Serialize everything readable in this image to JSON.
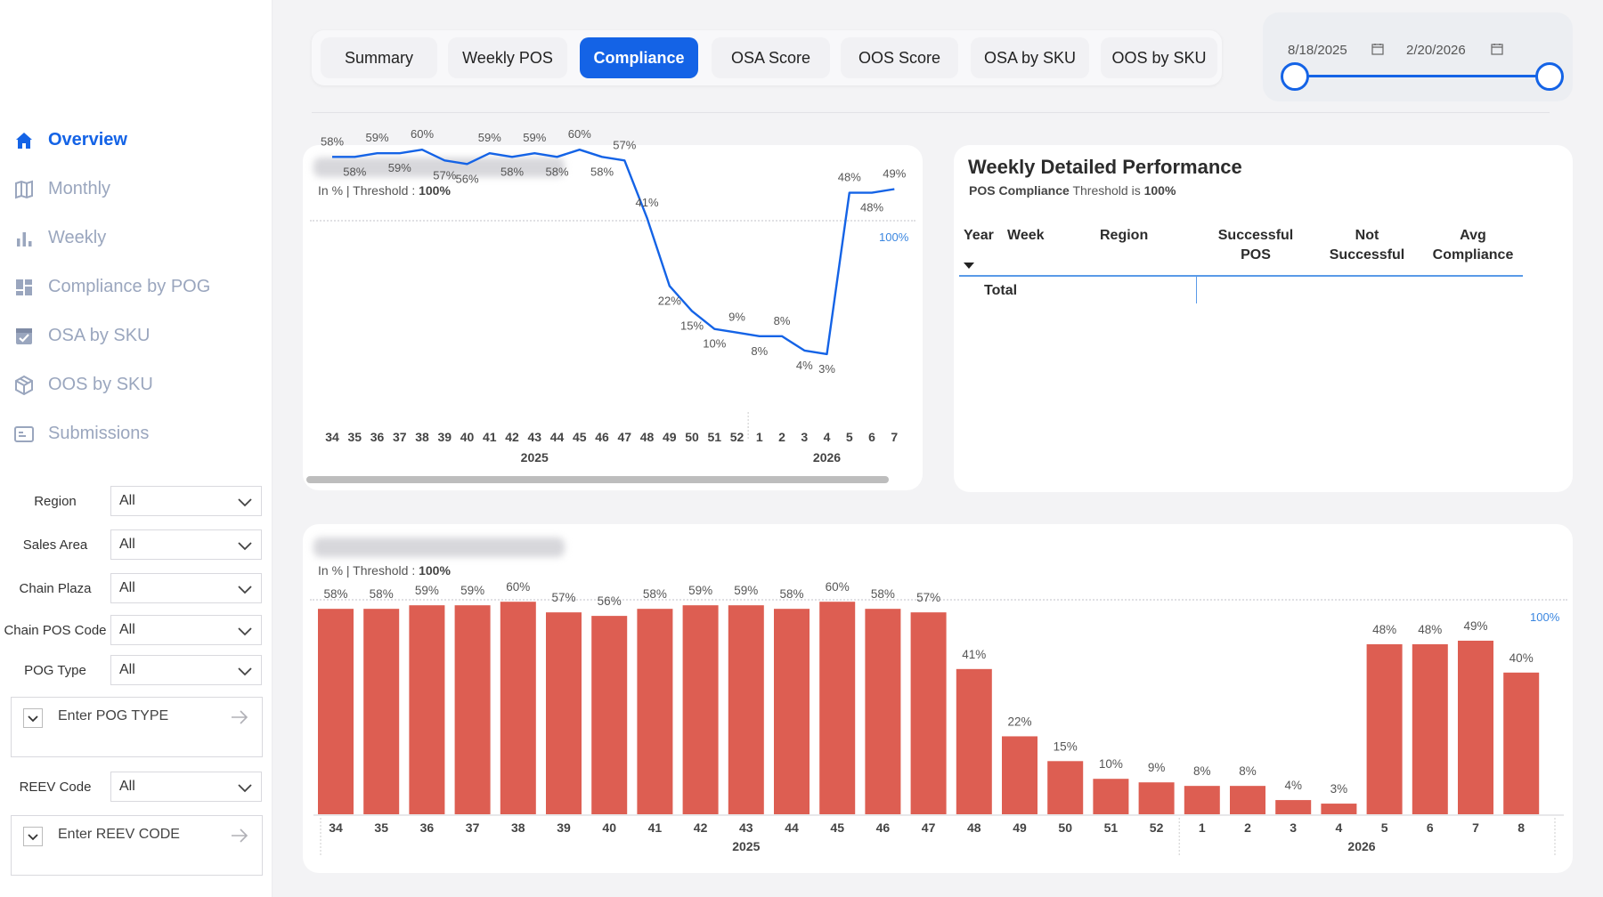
{
  "sidebar": {
    "items": [
      {
        "label": "Overview",
        "icon": "home-icon",
        "active": true
      },
      {
        "label": "Monthly",
        "icon": "map-icon",
        "active": false
      },
      {
        "label": "Weekly",
        "icon": "bar-chart-icon",
        "active": false
      },
      {
        "label": "Compliance by POG",
        "icon": "grid-icon",
        "active": false
      },
      {
        "label": "OSA by SKU",
        "icon": "checklist-icon",
        "active": false
      },
      {
        "label": "OOS by SKU",
        "icon": "box-icon",
        "active": false
      },
      {
        "label": "Submissions",
        "icon": "id-card-icon",
        "active": false
      }
    ]
  },
  "filters": {
    "region": {
      "label": "Region",
      "value": "All"
    },
    "sales_area": {
      "label": "Sales Area",
      "value": "All"
    },
    "chain_plaza": {
      "label": "Chain Plaza",
      "value": "All"
    },
    "chain_pos_code": {
      "label": "Chain POS Code",
      "value": "All"
    },
    "pog_type": {
      "label": "POG Type",
      "value": "All"
    },
    "pog_type_search": {
      "placeholder": "Enter POG TYPE"
    },
    "reev_code": {
      "label": "REEV Code",
      "value": "All"
    },
    "reev_code_search": {
      "placeholder": "Enter REEV CODE"
    }
  },
  "tabs": [
    "Summary",
    "Weekly POS",
    "Compliance",
    "OSA Score",
    "OOS Score",
    "OSA by SKU",
    "OOS by SKU"
  ],
  "active_tab": "Compliance",
  "date_range": {
    "start": "8/18/2025",
    "end": "2/20/2026"
  },
  "line_card": {
    "subtitle_prefix": "In % | Threshold : ",
    "subtitle_value": "100%",
    "threshold_label": "100%"
  },
  "bar_card": {
    "subtitle_prefix": "In % | Threshold : ",
    "subtitle_value": "100%",
    "threshold_label": "100%"
  },
  "weekly_table": {
    "title": "Weekly Detailed Performance",
    "subtitle_prefix": "POS Compliance",
    "subtitle_mid": " Threshold is ",
    "subtitle_value": "100%",
    "columns": [
      "Year",
      "Week",
      "Region",
      "Successful POS",
      "Not Successful",
      "Avg Compliance"
    ],
    "total_label": "Total"
  },
  "colors": {
    "accent": "#1463e6",
    "bar": "#dd5e52",
    "line": "#1463e6",
    "threshold": "#3a86e0"
  },
  "chart_data": [
    {
      "type": "line",
      "x": [
        "34",
        "35",
        "36",
        "37",
        "38",
        "39",
        "40",
        "41",
        "42",
        "43",
        "44",
        "45",
        "46",
        "47",
        "48",
        "49",
        "50",
        "51",
        "52",
        "1",
        "2",
        "3",
        "4",
        "5",
        "6",
        "7"
      ],
      "year_groups": [
        {
          "label": "2025",
          "count": 19
        },
        {
          "label": "2026",
          "count": 7
        }
      ],
      "series": [
        {
          "values": [
            58,
            58,
            59,
            59,
            60,
            57,
            56,
            59,
            58,
            59,
            58,
            60,
            58,
            57,
            41,
            22,
            15,
            10,
            9,
            8,
            8,
            4,
            3,
            48,
            48,
            49
          ]
        }
      ],
      "labels": [
        "58%",
        "58%",
        "59%",
        "59%",
        "60%",
        "57%",
        "56%",
        "59%",
        "58%",
        "59%",
        "58%",
        "60%",
        "58%",
        "57%",
        "41%",
        "22%",
        "15%",
        "10%",
        "9%",
        "8%",
        "8%",
        "4%",
        "3%",
        "48%",
        "48%",
        "49%"
      ],
      "ylim": [
        0,
        100
      ],
      "threshold": 100
    },
    {
      "type": "bar",
      "categories": [
        "34",
        "35",
        "36",
        "37",
        "38",
        "39",
        "40",
        "41",
        "42",
        "43",
        "44",
        "45",
        "46",
        "47",
        "48",
        "49",
        "50",
        "51",
        "52",
        "1",
        "2",
        "3",
        "4",
        "5",
        "6",
        "7",
        "8"
      ],
      "year_groups": [
        {
          "label": "2025",
          "count": 19
        },
        {
          "label": "2026",
          "count": 8
        }
      ],
      "values": [
        58,
        58,
        59,
        59,
        60,
        57,
        56,
        58,
        59,
        59,
        58,
        60,
        58,
        57,
        41,
        22,
        15,
        10,
        9,
        8,
        8,
        4,
        3,
        48,
        48,
        49,
        40
      ],
      "labels": [
        "58%",
        "58%",
        "59%",
        "59%",
        "60%",
        "57%",
        "56%",
        "58%",
        "59%",
        "59%",
        "58%",
        "60%",
        "58%",
        "57%",
        "41%",
        "22%",
        "15%",
        "10%",
        "9%",
        "8%",
        "8%",
        "4%",
        "3%",
        "48%",
        "48%",
        "49%",
        "40%"
      ],
      "ylim": [
        0,
        100
      ],
      "threshold": 100
    }
  ]
}
